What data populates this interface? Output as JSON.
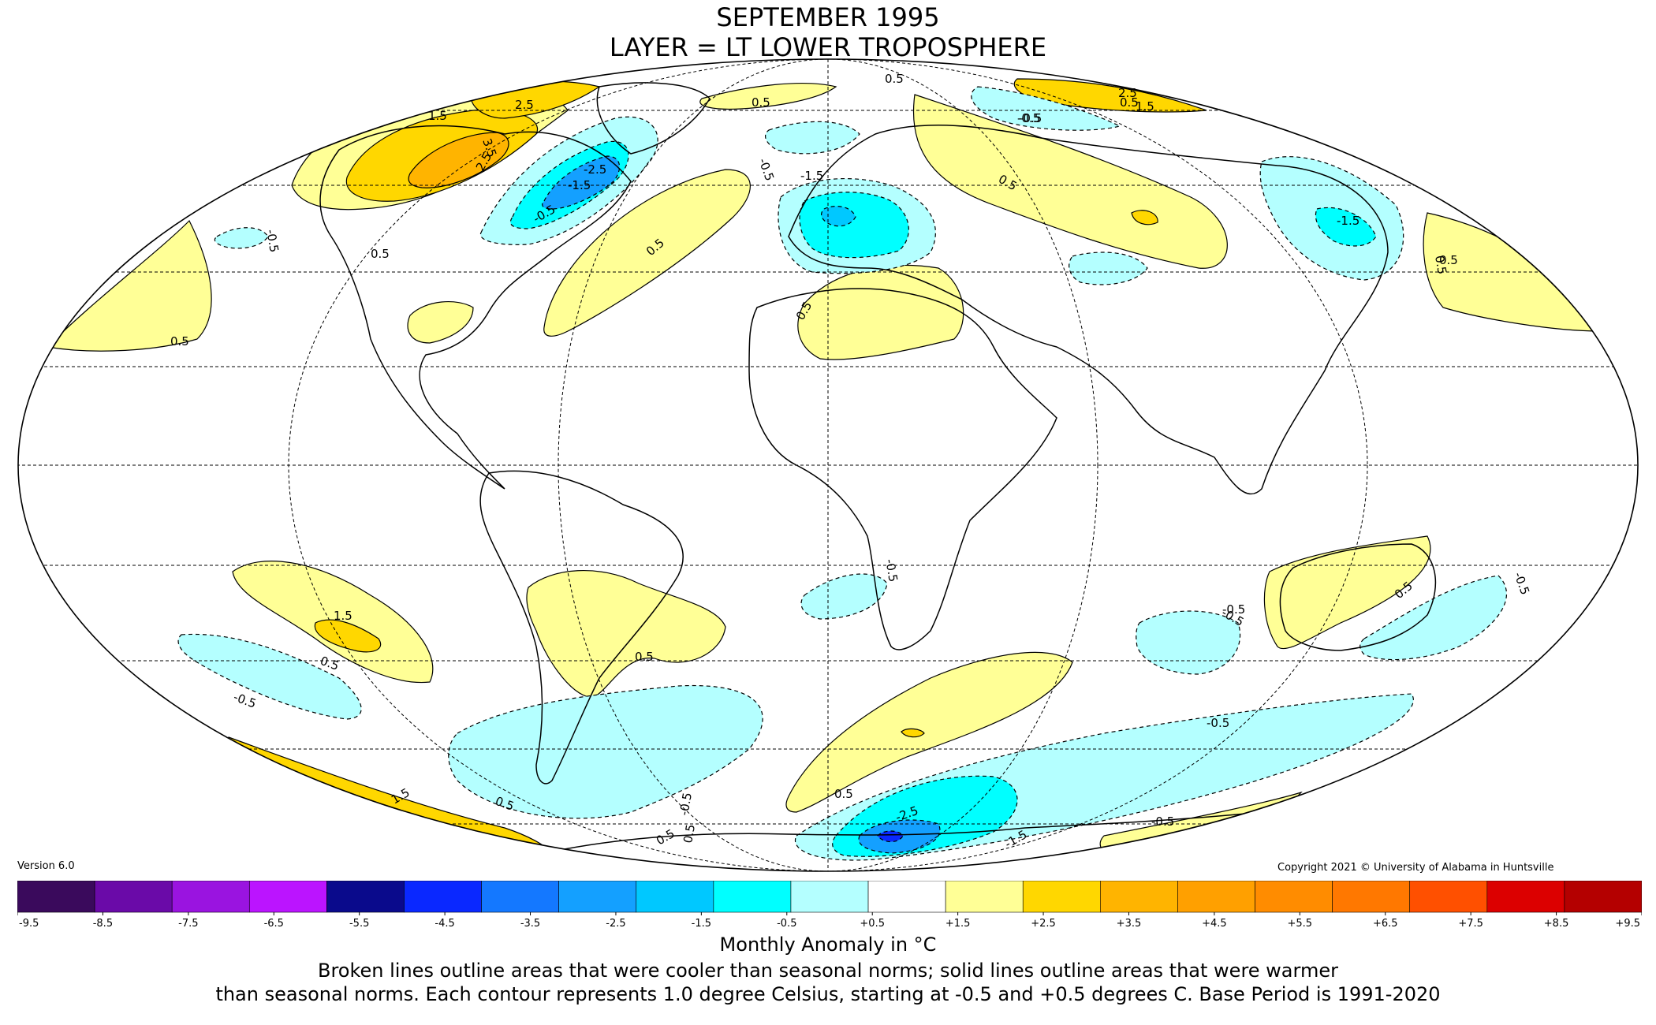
{
  "title": {
    "line1": "SEPTEMBER 1995",
    "line2": "LAYER = LT LOWER TROPOSPHERE"
  },
  "version": "Version 6.0",
  "copyright": "Copyright 2021 © University of Alabama in Huntsville",
  "colorbar": {
    "title": "Monthly Anomaly in °C",
    "ticks": [
      "-9.5",
      "-8.5",
      "-7.5",
      "-6.5",
      "-5.5",
      "-4.5",
      "-3.5",
      "-2.5",
      "-1.5",
      "-0.5",
      "+0.5",
      "+1.5",
      "+2.5",
      "+3.5",
      "+4.5",
      "+5.5",
      "+6.5",
      "+7.5",
      "+8.5",
      "+9.5"
    ],
    "colors": [
      "#3a0a5c",
      "#6a0aa8",
      "#9a14e0",
      "#bb14ff",
      "#0a0a8c",
      "#0a28ff",
      "#1478ff",
      "#14a0ff",
      "#00c8ff",
      "#00ffff",
      "#b4ffff",
      "#ffffff",
      "#ffff96",
      "#ffd700",
      "#ffb400",
      "#ffa000",
      "#ff8c00",
      "#ff7800",
      "#ff5000",
      "#dc0000",
      "#b40000"
    ]
  },
  "notes": {
    "line1": "Broken lines outline areas that were cooler than seasonal norms; solid lines outline areas that were warmer",
    "line2": "than seasonal norms. Each contour represents 1.0 degree Celsius, starting at -0.5 and +0.5 degrees C. Base Period is 1991-2020"
  },
  "contour_labels": [
    {
      "text": "2.5"
    },
    {
      "text": "3.5"
    },
    {
      "text": "2.5"
    },
    {
      "text": "1.5"
    },
    {
      "text": "0.5"
    },
    {
      "text": "-0.5"
    },
    {
      "text": "-1.5"
    },
    {
      "text": "-2.5"
    },
    {
      "text": "0.5"
    },
    {
      "text": "0.5"
    },
    {
      "text": "-0.5"
    },
    {
      "text": "0.5"
    },
    {
      "text": "0.5"
    },
    {
      "text": "-1.5"
    },
    {
      "text": "-0.5"
    },
    {
      "text": "0.5"
    },
    {
      "text": "0.5"
    },
    {
      "text": "2.5"
    },
    {
      "text": "1.5"
    },
    {
      "text": "-0.5"
    },
    {
      "text": "-1.5"
    },
    {
      "text": "0.5"
    },
    {
      "text": "0.5"
    },
    {
      "text": "-0.5"
    },
    {
      "text": "1.5"
    },
    {
      "text": "0.5"
    },
    {
      "text": "-0.5"
    },
    {
      "text": "0.5"
    },
    {
      "text": "-0.5"
    },
    {
      "text": "-0.5"
    },
    {
      "text": "0.5"
    },
    {
      "text": "-0.5"
    },
    {
      "text": "-0.5"
    },
    {
      "text": "0.5"
    },
    {
      "text": "-0.5"
    },
    {
      "text": "0.5"
    },
    {
      "text": "1.5"
    },
    {
      "text": "0.5"
    },
    {
      "text": "0.5"
    },
    {
      "text": "-0.5"
    },
    {
      "text": "-2.5"
    },
    {
      "text": "-1.5"
    },
    {
      "text": "-0.5"
    },
    {
      "text": "0.5"
    }
  ]
}
